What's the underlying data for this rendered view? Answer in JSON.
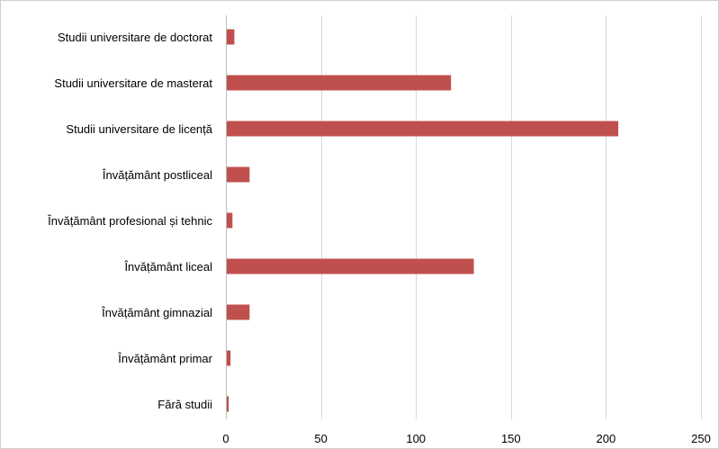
{
  "colors": {
    "bar": "#c0504d",
    "grid": "#d9d9d9",
    "axis": "#bfbfbf"
  },
  "chart_data": {
    "type": "bar",
    "orientation": "horizontal",
    "title": "",
    "xlabel": "",
    "ylabel": "",
    "categories": [
      "Studii universitare de doctorat",
      "Studii universitare de masterat",
      "Studii universitare de licență",
      "Învățământ postliceal",
      "Învățământ profesional și tehnic",
      "Învățământ liceal",
      "Învățământ gimnazial",
      "Învățământ primar",
      "Fără studii"
    ],
    "values": [
      4,
      118,
      206,
      12,
      3,
      130,
      12,
      2,
      1
    ],
    "xlim": [
      0,
      250
    ],
    "xticks": [
      0,
      50,
      100,
      150,
      200,
      250
    ],
    "grid": true,
    "legend": "none"
  }
}
